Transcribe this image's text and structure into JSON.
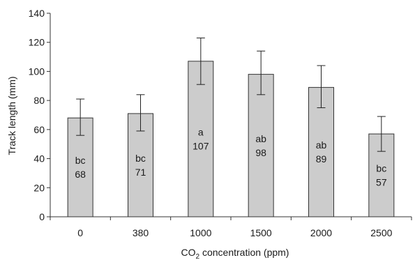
{
  "chart_data": {
    "type": "bar",
    "categories": [
      "0",
      "380",
      "1000",
      "1500",
      "2000",
      "2500"
    ],
    "values": [
      68,
      71,
      107,
      98,
      89,
      57
    ],
    "error_upper": [
      81,
      84,
      123,
      114,
      104,
      69
    ],
    "error_lower": [
      56,
      59,
      91,
      84,
      75,
      45
    ],
    "letters": [
      "bc",
      "bc",
      "a",
      "ab",
      "ab",
      "bc"
    ],
    "value_labels": [
      "68",
      "71",
      "107",
      "98",
      "89",
      "57"
    ],
    "title": "",
    "xlabel_prefix": "CO",
    "xlabel_subscript": "2",
    "xlabel_suffix": " concentration (ppm)",
    "ylabel": "Track length (mm)",
    "ylim": [
      0,
      140
    ],
    "yticks": [
      0,
      20,
      40,
      60,
      80,
      100,
      120,
      140
    ],
    "ytick_labels": [
      "0",
      "20",
      "40",
      "60",
      "80",
      "100",
      "120",
      "140"
    ],
    "grid": false,
    "legend": "none",
    "colors": {
      "bar_fill": "#cccccc",
      "bar_stroke": "#333333",
      "axis": "#333333"
    }
  }
}
